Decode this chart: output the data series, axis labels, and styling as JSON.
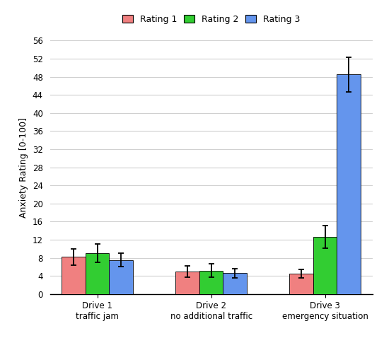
{
  "categories": [
    "Drive 1\ntraffic jam",
    "Drive 2\nno additional traffic",
    "Drive 3\nemergency situation"
  ],
  "ratings": {
    "Rating 1": [
      8.2,
      5.0,
      4.5
    ],
    "Rating 2": [
      9.0,
      5.2,
      12.7
    ],
    "Rating 3": [
      7.5,
      4.6,
      48.5
    ]
  },
  "errors": {
    "Rating 1": [
      1.8,
      1.2,
      1.0
    ],
    "Rating 2": [
      2.0,
      1.5,
      2.5
    ],
    "Rating 3": [
      1.5,
      1.0,
      3.8
    ]
  },
  "colors": {
    "Rating 1": "#F08080",
    "Rating 2": "#32CD32",
    "Rating 3": "#6495ED"
  },
  "ylabel": "Anxiety Rating [0-100]",
  "ylim": [
    0,
    56
  ],
  "yticks": [
    0,
    4,
    8,
    12,
    16,
    20,
    24,
    28,
    32,
    36,
    40,
    44,
    48,
    52,
    56
  ],
  "bar_width": 0.25,
  "group_positions": [
    0.3,
    1.5,
    2.7
  ],
  "legend_labels": [
    "Rating 1",
    "Rating 2",
    "Rating 3"
  ],
  "background_color": "#ffffff",
  "grid_color": "#d0d0d0"
}
